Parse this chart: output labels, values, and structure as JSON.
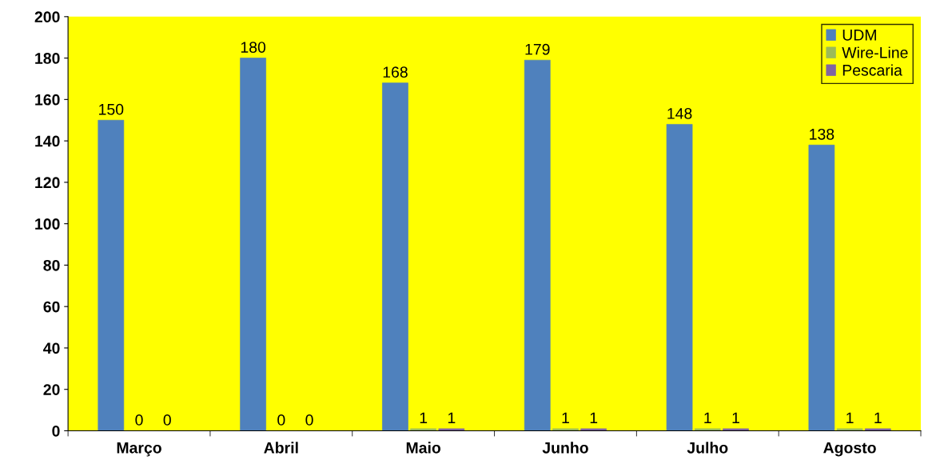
{
  "chart_data": {
    "type": "bar",
    "categories": [
      "Março",
      "Abril",
      "Maio",
      "Junho",
      "Julho",
      "Agosto"
    ],
    "series": [
      {
        "name": "UDM",
        "color": "#4f81bd",
        "values": [
          150,
          180,
          168,
          179,
          148,
          138
        ]
      },
      {
        "name": "Wire-Line",
        "color": "#9bbb59",
        "values": [
          0,
          0,
          1,
          1,
          1,
          1
        ]
      },
      {
        "name": "Pescaria",
        "color": "#8064a2",
        "values": [
          0,
          0,
          1,
          1,
          1,
          1
        ]
      }
    ],
    "ylim": [
      0,
      200
    ],
    "yticks": [
      0,
      20,
      40,
      60,
      80,
      100,
      120,
      140,
      160,
      180,
      200
    ],
    "data_labels": true,
    "legend": "top right",
    "grid": false
  }
}
